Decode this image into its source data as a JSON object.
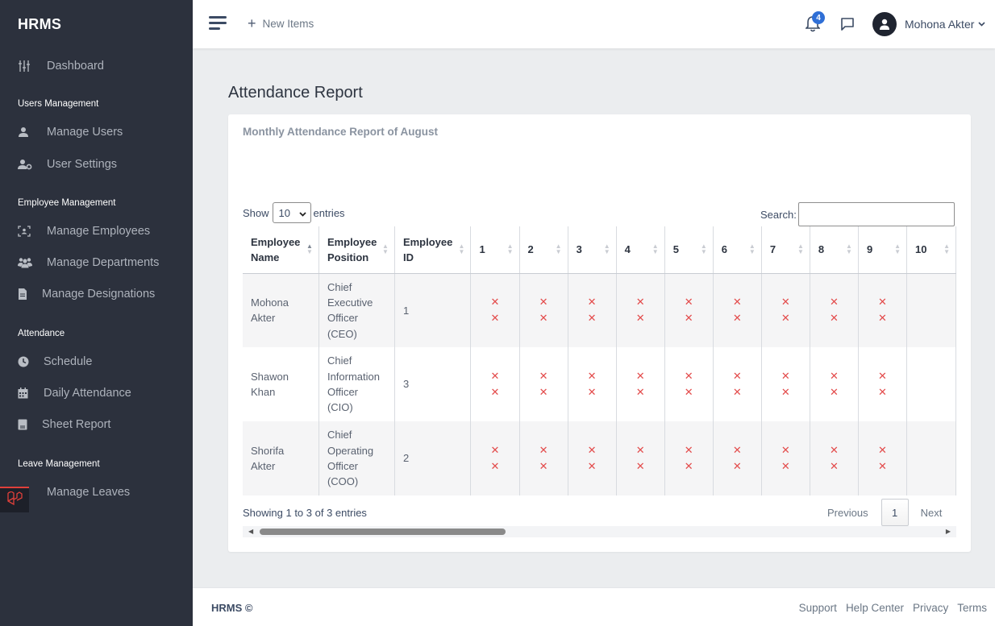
{
  "sidebar": {
    "brand": "HRMS",
    "dashboard": "Dashboard",
    "sections": {
      "users": "Users Management",
      "employees": "Employee Management",
      "attendance": "Attendance",
      "leave": "Leave Management"
    },
    "items": {
      "manage_users": "Manage Users",
      "user_settings": "User Settings",
      "manage_employees": "Manage Employees",
      "manage_departments": "Manage Departments",
      "manage_designations": "Manage Designations",
      "schedule": "Schedule",
      "daily_attendance": "Daily Attendance",
      "sheet_report": "Sheet Report",
      "manage_leaves": "Manage Leaves"
    }
  },
  "header": {
    "new_items": "New Items",
    "notification_count": "4",
    "user_name": "Mohona Akter"
  },
  "main": {
    "page_title": "Attendance Report",
    "card_title": "Monthly Attendance Report of August",
    "show_label": "Show",
    "entries_label": "entries",
    "page_length": "10",
    "search_label": "Search:",
    "search_value": "",
    "columns": {
      "name": "Employee Name",
      "position": "Employee Position",
      "id": "Employee ID",
      "days": [
        "1",
        "2",
        "3",
        "4",
        "5",
        "6",
        "7",
        "8",
        "9",
        "10"
      ]
    },
    "rows": [
      {
        "name": "Mohona Akter",
        "position": "Chief Executive Officer (CEO)",
        "id": "1"
      },
      {
        "name": "Shawon Khan",
        "position": "Chief Information Officer (CIO)",
        "id": "3"
      },
      {
        "name": "Shorifa Akter",
        "position": "Chief Operating Officer (COO)",
        "id": "2"
      }
    ],
    "absent_mark": "✕",
    "info": "Showing 1 to 3 of 3 entries",
    "pagination": {
      "previous": "Previous",
      "current": "1",
      "next": "Next"
    }
  },
  "footer": {
    "left": "HRMS ©",
    "links": {
      "support": "Support",
      "help": "Help Center",
      "privacy": "Privacy",
      "terms": "Terms"
    }
  },
  "colors": {
    "sidebar_bg": "#2c313d",
    "absent_mark": "#e34b4b",
    "badge": "#2f6fd6",
    "page_bg": "#ebedef"
  }
}
